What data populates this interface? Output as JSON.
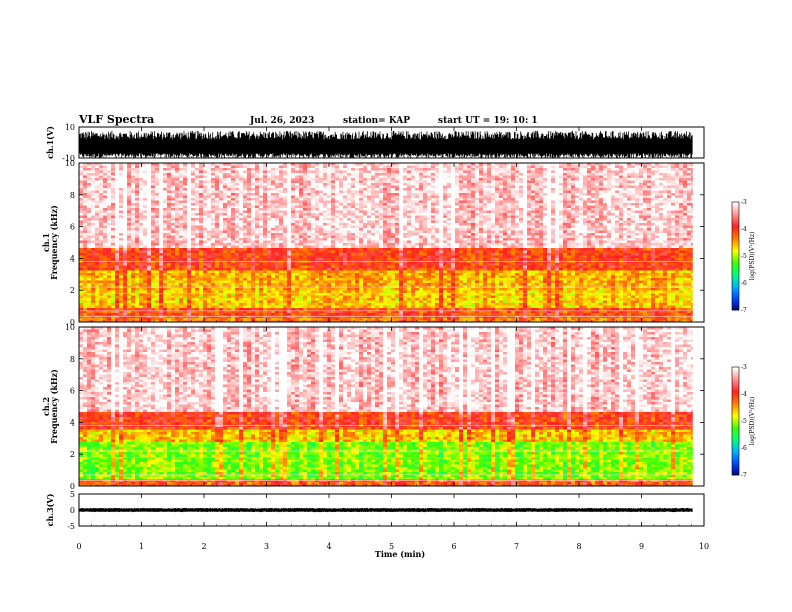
{
  "header": {
    "title": "VLF Spectra",
    "date": "Jul. 26, 2023",
    "station": "station= KAP",
    "start": "start UT =  19: 10: 1"
  },
  "colors": {
    "spectrogram_scale": [
      "#000080",
      "#0044ff",
      "#00b0ff",
      "#00ff80",
      "#40ff00",
      "#ffff00",
      "#ff8000",
      "#ff2020",
      "#ff9090",
      "#ffffff"
    ],
    "waveform": "#000000"
  },
  "chart_data": [
    {
      "type": "line",
      "name": "ch1-waveform",
      "ylabel": "ch.1(V)",
      "ylim": [
        -10,
        10
      ],
      "yticks": [
        "10",
        "-10"
      ],
      "xlim": [
        0,
        10
      ],
      "x_extent": 9.82,
      "envelope": "dense oscillation mostly between about -10 and +7.5 V"
    },
    {
      "type": "heatmap",
      "name": "ch1-spectrogram",
      "channel_label": "ch.1",
      "ylabel": "Frequency (kHz)",
      "ylim": [
        0,
        10
      ],
      "yticks": [
        "0",
        "2",
        "4",
        "6",
        "8",
        "10"
      ],
      "xlim": [
        0,
        10
      ],
      "x_extent": 9.82,
      "colorbar": {
        "label": "log(PSD)(V²/Hz)",
        "range": [
          -7,
          -3
        ],
        "ticks": [
          "-3",
          "-4",
          "-5",
          "-6",
          "-7"
        ]
      },
      "bands": [
        {
          "from": 0.0,
          "to": 0.3,
          "level": -4.3
        },
        {
          "from": 0.3,
          "to": 1.0,
          "level": -4.1
        },
        {
          "from": 1.0,
          "to": 2.0,
          "level": -4.6
        },
        {
          "from": 2.0,
          "to": 3.3,
          "level": -4.5
        },
        {
          "from": 3.3,
          "to": 4.8,
          "level": -4.0
        },
        {
          "from": 4.8,
          "to": 10.0,
          "level": -3.2
        }
      ]
    },
    {
      "type": "heatmap",
      "name": "ch2-spectrogram",
      "channel_label": "ch.2",
      "ylabel": "Frequency (kHz)",
      "ylim": [
        0,
        10
      ],
      "yticks": [
        "0",
        "2",
        "4",
        "6",
        "8",
        "10"
      ],
      "xlim": [
        0,
        10
      ],
      "x_extent": 9.82,
      "colorbar": {
        "label": "log(PSD)(V²/Hz)",
        "range": [
          -7,
          -3
        ],
        "ticks": [
          "-3",
          "-4",
          "-5",
          "-6",
          "-7"
        ]
      },
      "bands": [
        {
          "from": 0.0,
          "to": 0.5,
          "level": -4.2
        },
        {
          "from": 0.5,
          "to": 2.9,
          "level": -5.1
        },
        {
          "from": 2.9,
          "to": 3.6,
          "level": -4.6
        },
        {
          "from": 3.6,
          "to": 4.8,
          "level": -4.0
        },
        {
          "from": 4.8,
          "to": 10.0,
          "level": -3.2
        }
      ]
    },
    {
      "type": "line",
      "name": "ch3-waveform",
      "ylabel": "ch.3(V)",
      "ylim": [
        -5,
        5
      ],
      "yticks": [
        "5",
        "0",
        "-5"
      ],
      "xlim": [
        0,
        10
      ],
      "x_extent": 9.82,
      "envelope": "narrow band between about -0.5 and +0.5 V"
    }
  ],
  "xaxis": {
    "label": "Time (min)",
    "ticks": [
      "0",
      "1",
      "2",
      "3",
      "4",
      "5",
      "6",
      "7",
      "8",
      "9",
      "10"
    ]
  }
}
